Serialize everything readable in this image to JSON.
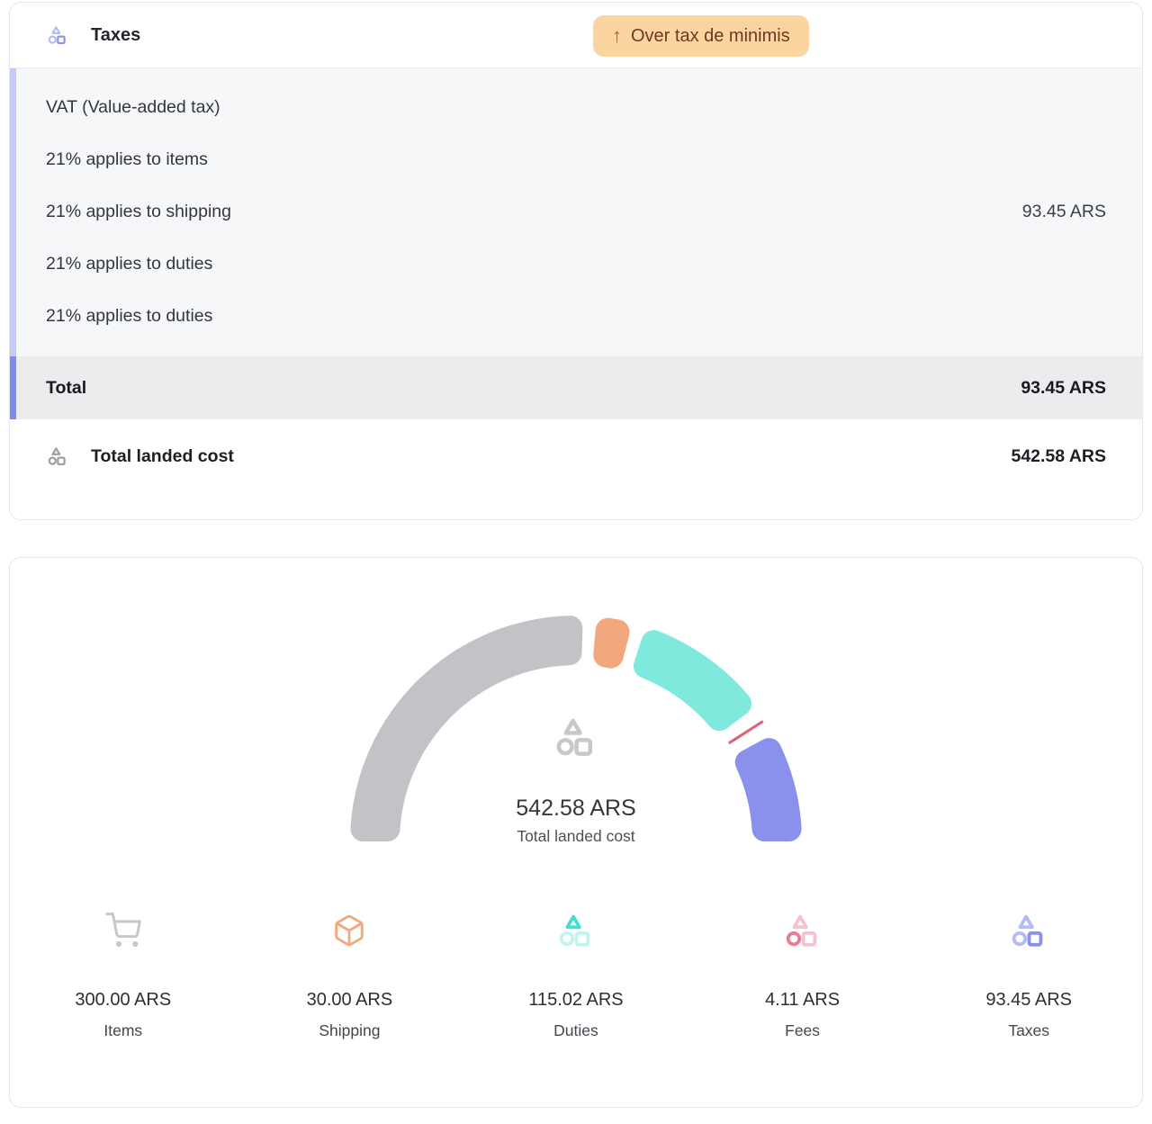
{
  "palette": {
    "card_border": "#e6e7ea",
    "section_bg": "#f6f7f9",
    "total_row_bg": "#ebecee",
    "accent_light": "#c5cafa",
    "accent_dark": "#7f8aef",
    "badge_bg": "#fbd5a0",
    "badge_text": "#6b3a20",
    "badge_arrow": "#b2603d",
    "indigo": "#8a91ec",
    "indigo_light": "#b6bbf6",
    "teal_dark": "#45ded1",
    "teal_light": "#c3f3ee",
    "pink_icon": "#ee7b94",
    "pink_light": "#f6c2cd",
    "icon_gray": "#9a9da3",
    "logo_gray": "#c7c8cb",
    "cart_gray": "#c6c7ca",
    "orange": "#f0a87c"
  },
  "tax_card": {
    "header": {
      "title": "Taxes",
      "badge": {
        "arrow": "↑",
        "text": "Over tax de minimis"
      }
    },
    "breakdown": {
      "rows": [
        {
          "label": "VAT (Value-added tax)",
          "value": ""
        },
        {
          "label": "21% applies to items",
          "value": ""
        },
        {
          "label": "21% applies to shipping",
          "value": "93.45 ARS"
        },
        {
          "label": "21% applies to duties",
          "value": ""
        },
        {
          "label": "21% applies to duties",
          "value": ""
        }
      ],
      "total": {
        "label": "Total",
        "value": "93.45 ARS"
      }
    },
    "footer": {
      "label": "Total landed cost",
      "value": "542.58 ARS"
    }
  },
  "chart_card": {
    "center": {
      "value": "542.58 ARS",
      "label": "Total landed cost"
    },
    "legend": [
      {
        "icon": "cart-icon",
        "value": "300.00 ARS",
        "label": "Items"
      },
      {
        "icon": "package-icon",
        "value": "30.00 ARS",
        "label": "Shipping"
      },
      {
        "icon": "logo-duties-icon",
        "value": "115.02 ARS",
        "label": "Duties"
      },
      {
        "icon": "logo-fees-icon",
        "value": "4.11 ARS",
        "label": "Fees"
      },
      {
        "icon": "logo-taxes-icon",
        "value": "93.45 ARS",
        "label": "Taxes"
      }
    ]
  },
  "chart_data": {
    "type": "pie",
    "subtype": "half-donut-gauge",
    "title": "542.58 ARS",
    "subtitle": "Total landed cost",
    "unit": "ARS",
    "total": 542.58,
    "categories": [
      "Items",
      "Shipping",
      "Duties",
      "Fees",
      "Taxes"
    ],
    "values": [
      300.0,
      30.0,
      115.02,
      4.11,
      93.45
    ],
    "colors": [
      "#c2c3c6",
      "#f2a87e",
      "#7ee9dc",
      "#e25f7b",
      "#8a91ec"
    ],
    "arc_span_degrees": 180,
    "gap_degrees": 3.5,
    "legend_position": "bottom"
  }
}
